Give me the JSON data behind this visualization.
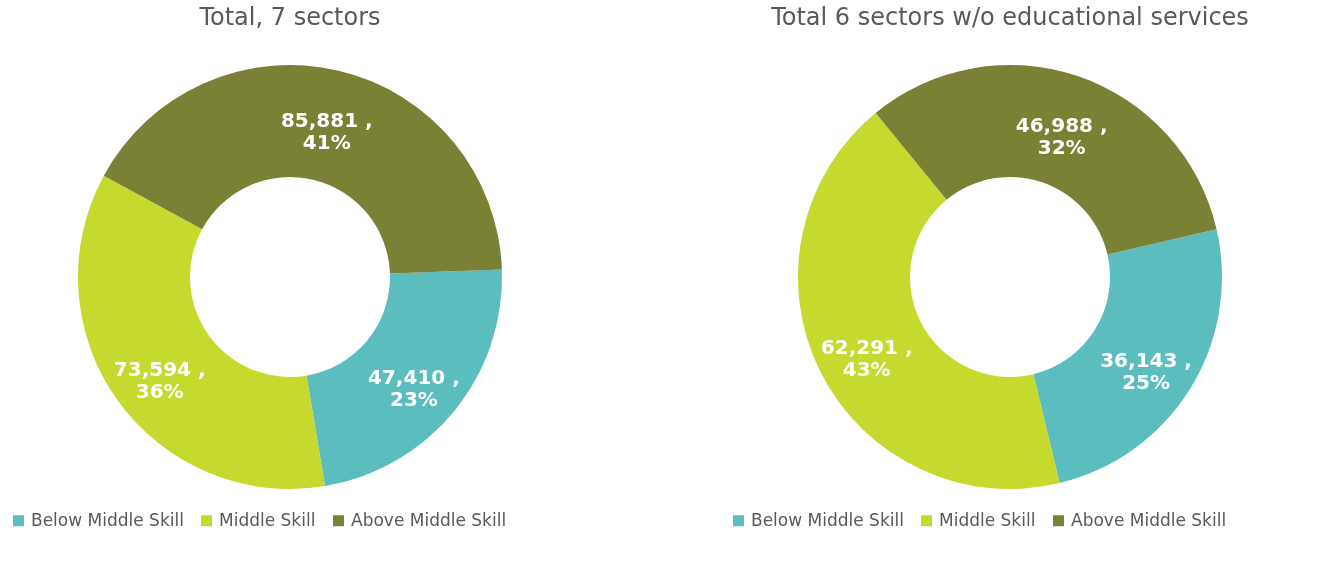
{
  "chart_data": [
    {
      "type": "donut",
      "title": "Total, 7 sectors",
      "categories": [
        "Below Middle Skill",
        "Middle Skill",
        "Above Middle Skill"
      ],
      "values": [
        47410,
        73594,
        85881
      ],
      "colors": [
        "#5bbdbe",
        "#c5d92e",
        "#7a8034"
      ],
      "value_labels": [
        "47,410 ,\n23%",
        "73,594 ,\n36%",
        "85,881 ,\n41%"
      ],
      "legend": "bottom"
    },
    {
      "type": "donut",
      "title": "Total 6 sectors w/o educational services",
      "categories": [
        "Below Middle Skill",
        "Middle Skill",
        "Above Middle Skill"
      ],
      "values": [
        36143,
        62291,
        46988
      ],
      "colors": [
        "#5bbdbe",
        "#c5d92e",
        "#7a8034"
      ],
      "value_labels": [
        "36,143 ,\n25%",
        "62,291 ,\n43%",
        "46,988 ,\n32%"
      ],
      "legend": "bottom"
    }
  ]
}
